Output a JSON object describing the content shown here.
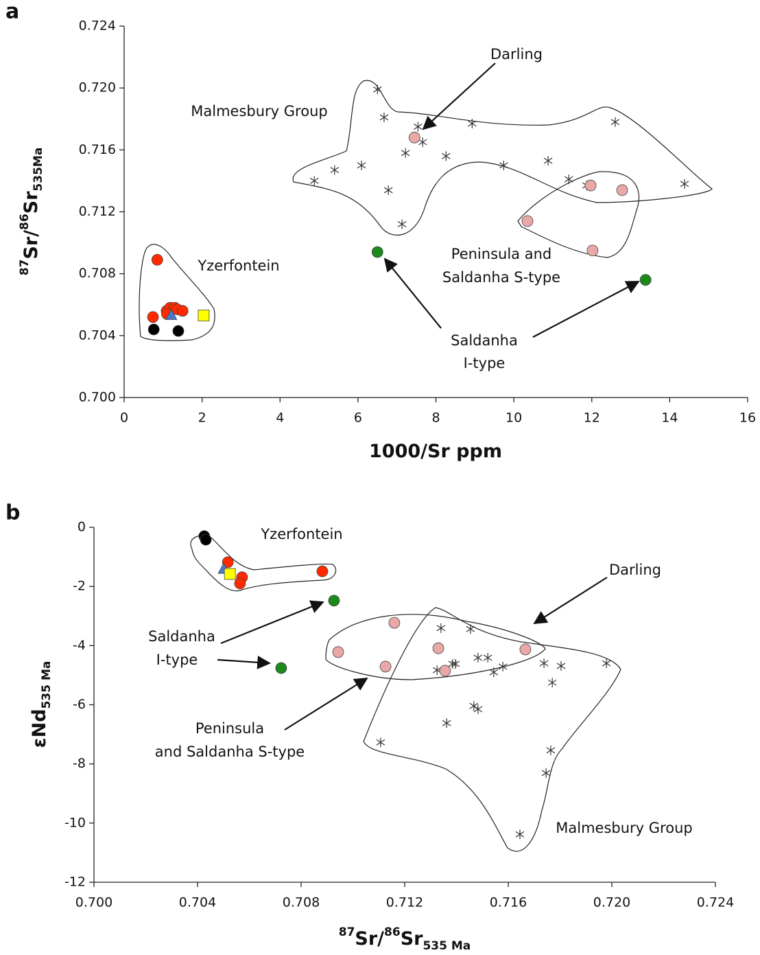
{
  "chart_data": [
    {
      "type": "scatter",
      "panel_label": "a",
      "x_label": [
        "1000/Sr ppm"
      ],
      "y_label": [
        "87",
        "Sr/",
        "86",
        "Sr",
        "535Ma"
      ],
      "xlim": [
        0,
        16
      ],
      "xticks": [
        0,
        2,
        4,
        6,
        8,
        10,
        12,
        14,
        16
      ],
      "ylim": [
        0.7,
        0.724
      ],
      "yticks": [
        {
          "value": 0.7,
          "label": "0.700"
        },
        0.704,
        0.708,
        0.712,
        0.716,
        {
          "value": 0.72,
          "label": "0.720"
        },
        0.724
      ],
      "series": [
        {
          "marker": "asterisk",
          "color": "#333333",
          "x": [
            6.5,
            6.67,
            7.54,
            7.66,
            7.22,
            8.26,
            8.93,
            4.88,
            5.4,
            6.09,
            6.78,
            7.13,
            9.74,
            10.88,
            11.41,
            11.87,
            12.6,
            14.38
          ],
          "values": [
            0.7199,
            0.7181,
            0.7175,
            0.7165,
            0.7158,
            0.7156,
            0.7177,
            0.714,
            0.7147,
            0.715,
            0.7134,
            0.7112,
            0.715,
            0.7153,
            0.7141,
            0.7137,
            0.7178,
            0.7138
          ]
        },
        {
          "marker": "circle",
          "color": "#e8a8a8",
          "x": [
            7.45
          ],
          "values": [
            0.7168
          ]
        },
        {
          "marker": "circle",
          "color": "#e8a8a8",
          "x": [
            11.97,
            12.78,
            10.35,
            12.02
          ],
          "values": [
            0.7137,
            0.7134,
            0.7114,
            0.7095
          ]
        },
        {
          "marker": "circle",
          "color": "#1a8a1a",
          "x": [
            6.5,
            13.38
          ],
          "values": [
            0.7094,
            0.7076
          ]
        },
        {
          "marker": "circle",
          "color": "#ff2a00",
          "x": [
            0.85,
            0.74,
            1.09,
            1.18,
            1.3,
            1.36,
            1.5,
            1.1
          ],
          "values": [
            0.7089,
            0.7052,
            0.7056,
            0.7058,
            0.7058,
            0.7057,
            0.7056,
            0.7054
          ]
        },
        {
          "marker": "circle",
          "color": "#000000",
          "x": [
            0.76,
            1.39
          ],
          "values": [
            0.7044,
            0.7043
          ]
        },
        {
          "marker": "triangle",
          "color": "#4a78d0",
          "x": [
            1.21
          ],
          "values": [
            0.7053
          ]
        },
        {
          "marker": "square",
          "color": "#ffff00",
          "x": [
            2.04
          ],
          "values": [
            0.7053
          ]
        }
      ],
      "annotations": [
        [
          "Malmesbury Group"
        ],
        [
          "Darling"
        ],
        [
          "Yzerfontein"
        ],
        [
          "Peninsula and",
          "Saldanha S-type"
        ],
        [
          "Saldanha",
          "I-type"
        ]
      ]
    },
    {
      "type": "scatter",
      "panel_label": "b",
      "x_label": [
        "87",
        "Sr/",
        "86",
        "Sr",
        "535 Ma"
      ],
      "y_label": [
        "εNd",
        "535 Ma"
      ],
      "xlim": [
        0.7,
        0.724
      ],
      "xticks": [
        {
          "value": 0.7,
          "label": "0.700"
        },
        0.704,
        0.708,
        0.712,
        0.716,
        {
          "value": 0.72,
          "label": "0.720"
        },
        0.724
      ],
      "ylim": [
        -12,
        0
      ],
      "yticks": [
        -12,
        -10,
        -8,
        -6,
        -4,
        -2,
        0
      ],
      "series": [
        {
          "marker": "asterisk",
          "color": "#333333",
          "x": [
            0.7134,
            0.71454,
            0.71325,
            0.71385,
            0.71396,
            0.71483,
            0.71521,
            0.71544,
            0.71579,
            0.71738,
            0.71804,
            0.7177,
            0.71979,
            0.71467,
            0.71483,
            0.71362,
            0.71107,
            0.71764,
            0.71746,
            0.71645
          ],
          "values": [
            -3.41,
            -3.44,
            -4.83,
            -4.62,
            -4.62,
            -4.41,
            -4.41,
            -4.9,
            -4.71,
            -4.6,
            -4.69,
            -5.25,
            -4.6,
            -6.04,
            -6.15,
            -6.62,
            -7.27,
            -7.54,
            -8.31,
            -10.38
          ]
        },
        {
          "marker": "circle",
          "color": "#e8a8a8",
          "x": [
            0.71666
          ],
          "values": [
            -4.13
          ]
        },
        {
          "marker": "circle",
          "color": "#e8a8a8",
          "x": [
            0.7116,
            0.7133,
            0.71356,
            0.71126,
            0.70943
          ],
          "values": [
            -3.23,
            -4.09,
            -4.85,
            -4.71,
            -4.22
          ]
        },
        {
          "marker": "circle",
          "color": "#1a8a1a",
          "x": [
            0.70927,
            0.70723
          ],
          "values": [
            -2.48,
            -4.76
          ]
        },
        {
          "marker": "circle",
          "color": "#ff2a00",
          "x": [
            0.70882,
            0.70517,
            0.70572,
            0.70564
          ],
          "values": [
            -1.49,
            -1.18,
            -1.69,
            -1.9
          ]
        },
        {
          "marker": "circle",
          "color": "#000000",
          "x": [
            0.70426,
            0.70432
          ],
          "values": [
            -0.3,
            -0.42
          ]
        },
        {
          "marker": "triangle",
          "color": "#4a78d0",
          "x": [
            0.70501
          ],
          "values": [
            -1.42
          ]
        },
        {
          "marker": "square",
          "color": "#ffff00",
          "x": [
            0.70525
          ],
          "values": [
            -1.58
          ]
        }
      ],
      "annotations": [
        [
          "Yzerfontein"
        ],
        [
          "Darling"
        ],
        [
          "Saldanha",
          "I-type"
        ],
        [
          "Peninsula",
          "and Saldanha S-type"
        ],
        [
          "Malmesbury Group"
        ]
      ]
    }
  ]
}
